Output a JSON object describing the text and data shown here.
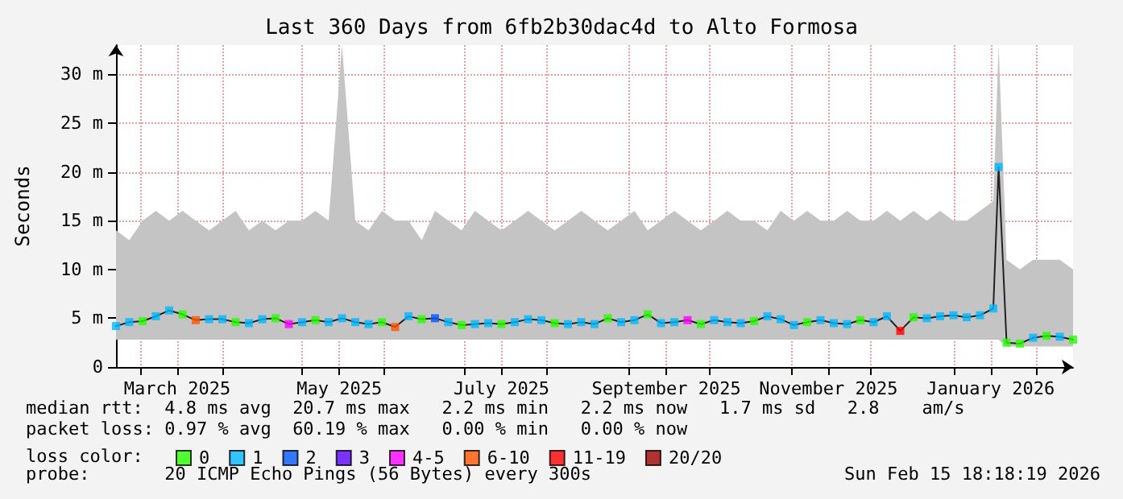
{
  "chart_data": {
    "type": "line",
    "title": "Last 360 Days from 6fb2b30dac4d to Alto Formosa",
    "ylabel": "Seconds",
    "xlim": [
      "2025-02-20",
      "2026-02-15"
    ],
    "xticks": [
      {
        "value": "2025-03-01",
        "label": null
      },
      {
        "value": "2025-03-15",
        "label": "March 2025"
      },
      {
        "value": "2025-04-01",
        "label": null
      },
      {
        "value": "2025-05-01",
        "label": null
      },
      {
        "value": "2025-05-15",
        "label": "May 2025"
      },
      {
        "value": "2025-06-01",
        "label": null
      },
      {
        "value": "2025-07-01",
        "label": null
      },
      {
        "value": "2025-07-15",
        "label": "July 2025"
      },
      {
        "value": "2025-08-01",
        "label": null
      },
      {
        "value": "2025-09-01",
        "label": null
      },
      {
        "value": "2025-09-15",
        "label": "September 2025"
      },
      {
        "value": "2025-10-01",
        "label": null
      },
      {
        "value": "2025-11-01",
        "label": null
      },
      {
        "value": "2025-11-15",
        "label": "November 2025"
      },
      {
        "value": "2025-12-01",
        "label": null
      },
      {
        "value": "2026-01-01",
        "label": null
      },
      {
        "value": "2026-01-15",
        "label": "January 2026"
      },
      {
        "value": "2026-02-01",
        "label": null
      }
    ],
    "ylim": [
      0,
      33
    ],
    "yticks": [
      0,
      {
        "value": 5,
        "label": "5 m"
      },
      {
        "value": 10,
        "label": "10 m"
      },
      {
        "value": 15,
        "label": "15 m"
      },
      {
        "value": 20,
        "label": "20 m"
      },
      {
        "value": 25,
        "label": "25 m"
      },
      {
        "value": 30,
        "label": "30 m"
      }
    ],
    "grid": true,
    "legend": "bottom left",
    "legend_title": "loss color:",
    "marker": "square",
    "x": [
      "2025-02-20",
      "2025-02-25",
      "2025-03-02",
      "2025-03-07",
      "2025-03-12",
      "2025-03-17",
      "2025-03-22",
      "2025-03-27",
      "2025-04-01",
      "2025-04-06",
      "2025-04-11",
      "2025-04-16",
      "2025-04-21",
      "2025-04-26",
      "2025-05-01",
      "2025-05-06",
      "2025-05-11",
      "2025-05-16",
      "2025-05-21",
      "2025-05-26",
      "2025-05-31",
      "2025-06-05",
      "2025-06-10",
      "2025-06-15",
      "2025-06-20",
      "2025-06-25",
      "2025-06-30",
      "2025-07-05",
      "2025-07-10",
      "2025-07-15",
      "2025-07-20",
      "2025-07-25",
      "2025-07-30",
      "2025-08-04",
      "2025-08-09",
      "2025-08-14",
      "2025-08-19",
      "2025-08-24",
      "2025-08-29",
      "2025-09-03",
      "2025-09-08",
      "2025-09-13",
      "2025-09-18",
      "2025-09-23",
      "2025-09-28",
      "2025-10-03",
      "2025-10-08",
      "2025-10-13",
      "2025-10-18",
      "2025-10-23",
      "2025-10-28",
      "2025-11-02",
      "2025-11-07",
      "2025-11-12",
      "2025-11-17",
      "2025-11-22",
      "2025-11-27",
      "2025-12-02",
      "2025-12-07",
      "2025-12-12",
      "2025-12-17",
      "2025-12-22",
      "2025-12-27",
      "2026-01-01",
      "2026-01-06",
      "2026-01-11",
      "2026-01-16",
      "2026-01-18",
      "2026-01-21",
      "2026-01-26",
      "2026-01-31",
      "2026-02-05",
      "2026-02-10",
      "2026-02-15"
    ],
    "series": [
      {
        "color": "#222222",
        "marker": "none",
        "values": [
          4.2,
          4.6,
          4.7,
          5.2,
          5.8,
          5.4,
          4.8,
          4.9,
          4.9,
          4.6,
          4.5,
          4.9,
          5.0,
          4.4,
          4.6,
          4.8,
          4.6,
          5.0,
          4.6,
          4.4,
          4.6,
          4.1,
          5.2,
          4.9,
          5.0,
          4.6,
          4.3,
          4.4,
          4.5,
          4.4,
          4.6,
          4.9,
          4.8,
          4.5,
          4.4,
          4.6,
          4.4,
          5.0,
          4.6,
          4.8,
          5.4,
          4.5,
          4.6,
          4.8,
          4.4,
          4.8,
          4.6,
          4.5,
          4.7,
          5.2,
          4.9,
          4.3,
          4.6,
          4.8,
          4.5,
          4.4,
          4.8,
          4.6,
          5.2,
          3.7,
          5.1,
          5.0,
          5.2,
          5.3,
          5.1,
          5.3,
          6.0,
          20.5,
          2.5,
          2.4,
          3.0,
          3.2,
          3.1,
          2.8
        ],
        "lower": [
          2.8,
          2.8,
          2.8,
          2.8,
          2.8,
          2.8,
          2.8,
          2.8,
          2.8,
          2.8,
          2.8,
          2.8,
          2.8,
          2.8,
          2.8,
          2.8,
          2.8,
          2.8,
          2.8,
          2.8,
          2.8,
          2.8,
          2.8,
          2.8,
          2.8,
          2.8,
          2.8,
          2.8,
          2.8,
          2.8,
          2.8,
          2.8,
          2.8,
          2.8,
          2.8,
          2.8,
          2.8,
          2.8,
          2.8,
          2.8,
          2.8,
          2.8,
          2.8,
          2.8,
          2.8,
          2.8,
          2.8,
          2.8,
          2.8,
          2.8,
          2.8,
          2.8,
          2.8,
          2.8,
          2.8,
          2.8,
          2.8,
          2.8,
          2.8,
          2.8,
          2.8,
          2.8,
          2.8,
          2.8,
          2.8,
          2.8,
          2.8,
          2.8,
          2.1,
          2.1,
          2.1,
          2.1,
          2.1,
          2.1
        ],
        "upper": [
          14,
          13,
          15,
          16,
          15,
          16,
          15,
          14,
          15,
          16,
          14,
          15,
          14,
          15,
          15,
          16,
          15,
          33,
          15,
          14,
          16,
          15,
          15,
          13,
          16,
          15,
          14,
          16,
          15,
          14,
          15,
          16,
          15,
          14,
          15,
          16,
          15,
          14,
          15,
          16,
          14,
          15,
          16,
          15,
          14,
          15,
          16,
          15,
          15,
          14,
          16,
          15,
          16,
          15,
          15,
          16,
          15,
          15,
          16,
          15,
          16,
          15,
          16,
          15,
          15,
          16,
          17,
          33,
          11,
          10,
          11,
          11,
          11,
          10
        ]
      },
      {
        "type": "scatter",
        "name": "0",
        "color": "#26ff00",
        "x": [
          "2025-03-02",
          "2025-03-17",
          "2025-04-06",
          "2025-04-21",
          "2025-05-06",
          "2025-05-31",
          "2025-06-15",
          "2025-06-30",
          "2025-07-15",
          "2025-08-04",
          "2025-08-24",
          "2025-09-08",
          "2025-09-28",
          "2025-10-18",
          "2025-11-07",
          "2025-11-27",
          "2025-12-17",
          "2026-01-21",
          "2026-01-26",
          "2026-02-05",
          "2026-02-15"
        ],
        "values": [
          4.7,
          5.4,
          4.6,
          5.0,
          4.8,
          4.6,
          4.9,
          4.3,
          4.4,
          4.5,
          5.0,
          5.4,
          4.4,
          4.7,
          4.6,
          4.8,
          5.1,
          2.5,
          2.4,
          3.2,
          2.8
        ]
      },
      {
        "type": "scatter",
        "name": "1",
        "color": "#00b8ff",
        "x": [
          "2025-02-20",
          "2025-02-25",
          "2025-03-07",
          "2025-03-12",
          "2025-03-27",
          "2025-04-01",
          "2025-04-11",
          "2025-04-16",
          "2025-05-01",
          "2025-05-11",
          "2025-05-16",
          "2025-05-21",
          "2025-05-26",
          "2025-06-10",
          "2025-06-25",
          "2025-07-05",
          "2025-07-10",
          "2025-07-20",
          "2025-07-25",
          "2025-07-30",
          "2025-08-09",
          "2025-08-14",
          "2025-08-19",
          "2025-08-29",
          "2025-09-03",
          "2025-09-13",
          "2025-09-18",
          "2025-10-03",
          "2025-10-08",
          "2025-10-13",
          "2025-10-23",
          "2025-10-28",
          "2025-11-02",
          "2025-11-12",
          "2025-11-17",
          "2025-11-22",
          "2025-12-02",
          "2025-12-07",
          "2025-12-22",
          "2025-12-27",
          "2026-01-01",
          "2026-01-06",
          "2026-01-11",
          "2026-01-16",
          "2026-01-18",
          "2026-01-31",
          "2026-02-10"
        ],
        "values": [
          4.2,
          4.6,
          5.2,
          5.8,
          4.9,
          4.9,
          4.5,
          4.9,
          4.6,
          4.6,
          5.0,
          4.6,
          4.4,
          5.2,
          4.6,
          4.4,
          4.5,
          4.6,
          4.9,
          4.8,
          4.4,
          4.6,
          4.4,
          4.6,
          4.8,
          4.5,
          4.6,
          4.8,
          4.6,
          4.5,
          5.2,
          4.9,
          4.3,
          4.8,
          4.5,
          4.4,
          4.6,
          5.2,
          5.0,
          5.2,
          5.3,
          5.1,
          5.3,
          6.0,
          20.5,
          3.0,
          3.1
        ]
      },
      {
        "type": "scatter",
        "name": "2",
        "color": "#0059ff",
        "x": [
          "2025-06-20"
        ],
        "values": [
          5.0
        ]
      },
      {
        "type": "scatter",
        "name": "3",
        "color": "#5e00ff",
        "values": [
          null,
          null,
          null,
          null,
          null,
          null,
          null,
          null,
          null,
          null,
          null,
          null,
          null,
          null,
          null,
          null,
          null,
          null,
          null,
          null,
          null,
          null,
          null,
          null,
          null,
          null,
          null,
          null,
          null,
          null,
          null,
          null,
          null,
          null,
          null,
          null,
          null,
          null,
          null,
          null,
          null,
          null,
          null,
          null,
          null,
          null,
          null,
          null,
          null,
          null,
          null,
          null,
          null,
          null,
          null,
          null,
          null,
          null,
          null,
          null,
          null,
          null,
          null,
          null,
          null,
          null,
          null,
          null,
          null,
          null,
          null,
          null,
          null,
          null
        ]
      },
      {
        "type": "scatter",
        "name": "4-5",
        "color": "#ff00ff",
        "x": [
          "2025-04-26",
          "2025-09-23"
        ],
        "values": [
          4.4,
          4.8
        ]
      },
      {
        "type": "scatter",
        "name": "6-10",
        "color": "#ff5500",
        "x": [
          "2025-03-22",
          "2025-06-05"
        ],
        "values": [
          4.8,
          4.1
        ]
      },
      {
        "type": "scatter",
        "name": "11-19",
        "color": "#ff0000",
        "x": [
          "2025-12-12"
        ],
        "values": [
          3.7
        ]
      },
      {
        "type": "scatter",
        "name": "20/20",
        "color": "#a10000",
        "values": [
          null,
          null,
          null,
          null,
          null,
          null,
          null,
          null,
          null,
          null,
          null,
          null,
          null,
          null,
          null,
          null,
          null,
          null,
          null,
          null,
          null,
          null,
          null,
          null,
          null,
          null,
          null,
          null,
          null,
          null,
          null,
          null,
          null,
          null,
          null,
          null,
          null,
          null,
          null,
          null,
          null,
          null,
          null,
          null,
          null,
          null,
          null,
          null,
          null,
          null,
          null,
          null,
          null,
          null,
          null,
          null,
          null,
          null,
          null,
          null,
          null,
          null,
          null,
          null,
          null,
          null,
          null,
          null,
          null,
          null,
          null,
          null,
          null,
          null
        ]
      }
    ],
    "annotations": [
      "median rtt:  4.8 ms avg  20.7 ms max   2.2 ms min   2.2 ms now   1.7 ms sd   2.8    am/s",
      "packet loss: 0.97 % avg  60.19 % max   0.00 % min   0.00 % now",
      "probe:       20 ICMP Echo Pings (56 Bytes) every 300s",
      "Sun Feb 15 18:18:19 2026"
    ]
  }
}
